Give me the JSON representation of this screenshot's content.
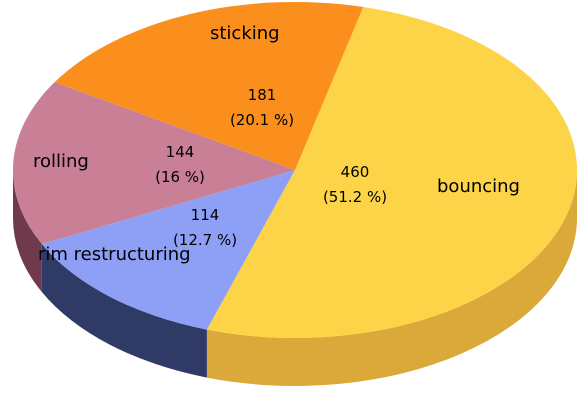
{
  "chart_data": {
    "type": "pie3d",
    "categories": [
      "bouncing",
      "rim restructuring",
      "rolling",
      "sticking"
    ],
    "values": [
      460,
      114,
      144,
      181
    ],
    "percent_labels": [
      "(51.2 %)",
      "(12.7 %)",
      "(16 %)",
      "(20.1 %)"
    ],
    "colors": [
      "#fdd448",
      "#8ea0f5",
      "#c97f95",
      "#fb8f1e"
    ],
    "side_colors": [
      "#dba83a",
      "#2f3a66",
      "#6e3a4c",
      "#b0601a"
    ]
  }
}
